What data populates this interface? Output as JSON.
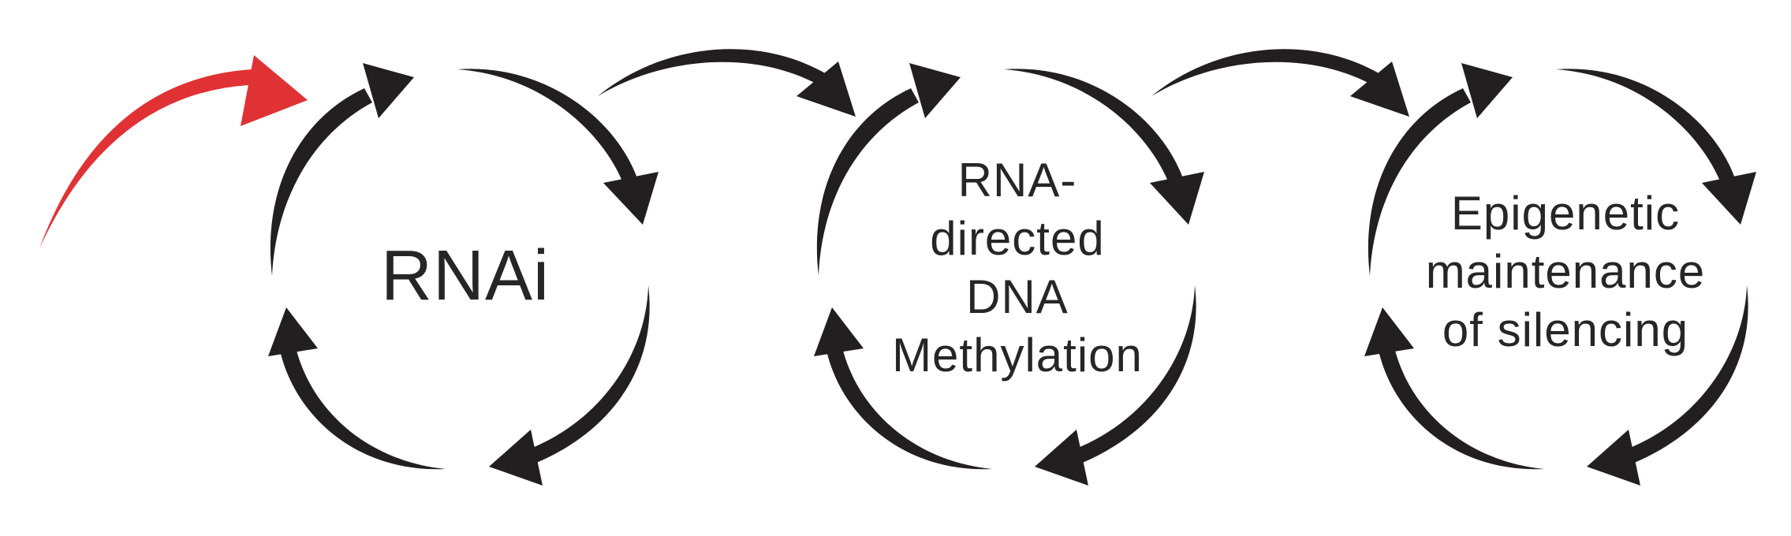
{
  "diagram": {
    "stages": [
      {
        "label": "RNAi"
      },
      {
        "label": "RNA-\ndirected\nDNA\nMethylation"
      },
      {
        "label": "Epigenetic\nmaintenance\nof silencing"
      }
    ],
    "colors": {
      "cycle_arrows": "#231f20",
      "initiating_arrow": "#e03234",
      "text": "#262626"
    },
    "icons": [
      "cycle-arrow-icon",
      "connector-arrow-icon",
      "initiating-arrow-icon"
    ]
  }
}
